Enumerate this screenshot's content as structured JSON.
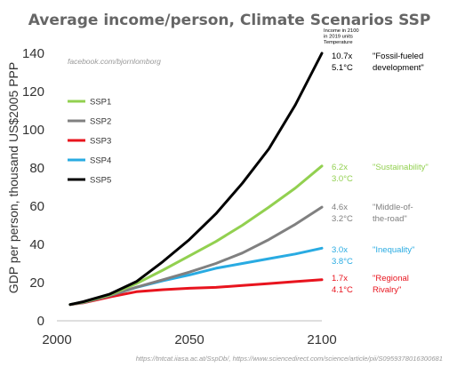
{
  "chart_data": {
    "type": "line",
    "title": "Average income/person, Climate Scenarios SSP",
    "ylabel": "GDP per person, thousand US$2005 PPP",
    "xlabel": "",
    "xlim": [
      2000,
      2100
    ],
    "ylim": [
      0,
      140
    ],
    "xticks": [
      2000,
      2050,
      2100
    ],
    "yticks": [
      0,
      20,
      40,
      60,
      80,
      100,
      120,
      140
    ],
    "grid": false,
    "legend_position": "upper-left",
    "watermark": "facebook.com/bjornlomborg",
    "note_lines": [
      "Income in 2100",
      "in 2019 units",
      "Temperature"
    ],
    "source": "https://tntcat.iiasa.ac.at/SspDb/, https://www.sciencedirect.com/science/article/pii/S0959378016300681",
    "series": [
      {
        "name": "SSP1",
        "color": "#92D050",
        "x": [
          2005,
          2010,
          2020,
          2030,
          2040,
          2050,
          2060,
          2070,
          2080,
          2090,
          2100
        ],
        "values": [
          8.5,
          9.8,
          13.6,
          19.5,
          26.5,
          34,
          41.5,
          50,
          59.5,
          69.5,
          81
        ],
        "multiplier": "6.2x",
        "temperature": "3.0°C",
        "scenario_lines": [
          "\"Sustainability\""
        ]
      },
      {
        "name": "SSP2",
        "color": "#808080",
        "x": [
          2005,
          2010,
          2020,
          2030,
          2040,
          2050,
          2060,
          2070,
          2080,
          2090,
          2100
        ],
        "values": [
          8.5,
          9.6,
          13.2,
          17.6,
          21.5,
          25.5,
          30,
          35.5,
          42.5,
          50.5,
          59.5
        ],
        "multiplier": "4.6x",
        "temperature": "3.2°C",
        "scenario_lines": [
          "\"Middle-of-",
          "the-road\""
        ]
      },
      {
        "name": "SSP3",
        "color": "#E8141E",
        "x": [
          2005,
          2010,
          2020,
          2030,
          2040,
          2050,
          2060,
          2070,
          2080,
          2090,
          2100
        ],
        "values": [
          8.5,
          9.4,
          12.5,
          15.2,
          16.3,
          17,
          17.5,
          18.5,
          19.5,
          20.5,
          21.5
        ],
        "multiplier": "1.7x",
        "temperature": "4.1°C",
        "scenario_lines": [
          "\"Regional",
          "Rivalry\""
        ]
      },
      {
        "name": "SSP4",
        "color": "#29ABE2",
        "x": [
          2005,
          2010,
          2020,
          2030,
          2040,
          2050,
          2060,
          2070,
          2080,
          2090,
          2100
        ],
        "values": [
          8.5,
          9.6,
          13.2,
          17.5,
          21,
          24,
          27.5,
          30,
          32.5,
          35,
          38
        ],
        "multiplier": "3.0x",
        "temperature": "3.8°C",
        "scenario_lines": [
          "\"Inequality\""
        ]
      },
      {
        "name": "SSP5",
        "color": "#000000",
        "x": [
          2005,
          2010,
          2020,
          2030,
          2040,
          2050,
          2060,
          2070,
          2080,
          2090,
          2100
        ],
        "values": [
          8.5,
          10,
          14,
          20.5,
          31,
          42.5,
          56,
          72,
          90,
          113,
          140
        ],
        "multiplier": "10.7x",
        "temperature": "5.1°C",
        "scenario_lines": [
          "\"Fossil-fueled",
          "development\""
        ]
      }
    ],
    "legend_order": [
      "SSP1",
      "SSP2",
      "SSP3",
      "SSP4",
      "SSP5"
    ]
  }
}
